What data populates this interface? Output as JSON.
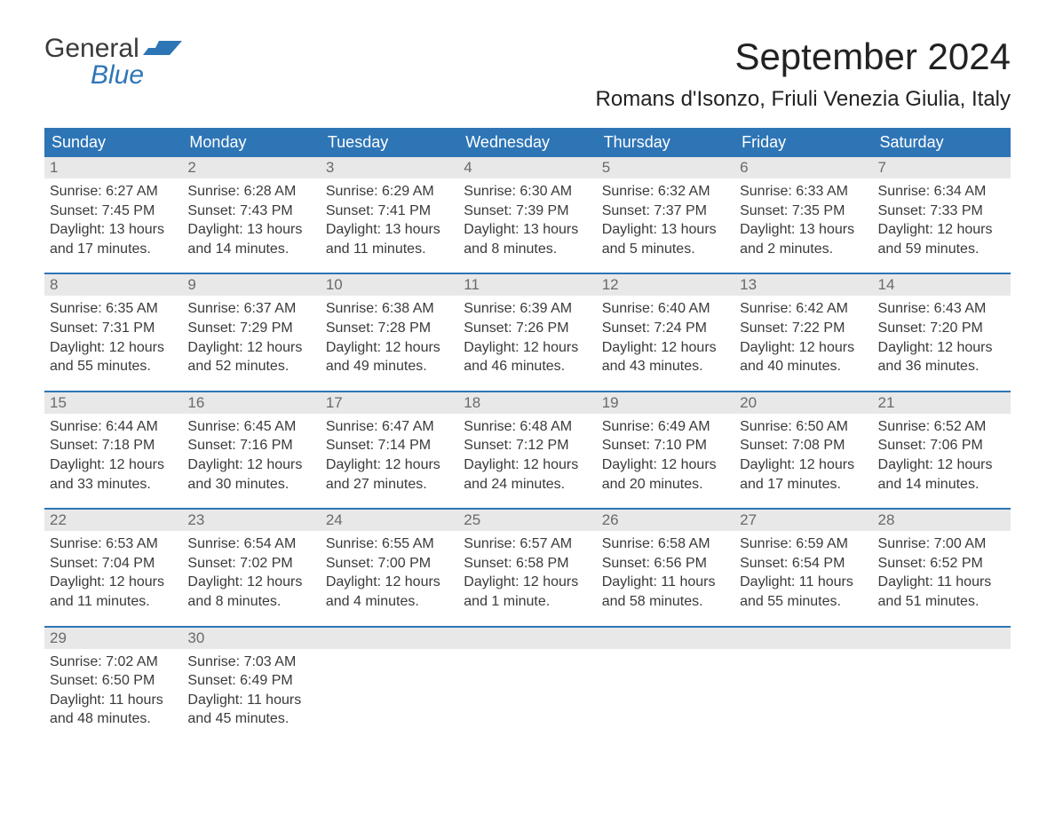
{
  "logo": {
    "text_general": "General",
    "text_blue": "Blue",
    "accent_color": "#2e75b6"
  },
  "title": "September 2024",
  "location": "Romans d'Isonzo, Friuli Venezia Giulia, Italy",
  "colors": {
    "header_bg": "#2e75b6",
    "header_text": "#ffffff",
    "daynum_bg": "#e8e8e8",
    "daynum_text": "#6a6a6a",
    "body_text": "#3a3a3a",
    "week_border": "#2e75b6"
  },
  "day_headers": [
    "Sunday",
    "Monday",
    "Tuesday",
    "Wednesday",
    "Thursday",
    "Friday",
    "Saturday"
  ],
  "weeks": [
    [
      {
        "n": "1",
        "sunrise": "Sunrise: 6:27 AM",
        "sunset": "Sunset: 7:45 PM",
        "d1": "Daylight: 13 hours",
        "d2": "and 17 minutes."
      },
      {
        "n": "2",
        "sunrise": "Sunrise: 6:28 AM",
        "sunset": "Sunset: 7:43 PM",
        "d1": "Daylight: 13 hours",
        "d2": "and 14 minutes."
      },
      {
        "n": "3",
        "sunrise": "Sunrise: 6:29 AM",
        "sunset": "Sunset: 7:41 PM",
        "d1": "Daylight: 13 hours",
        "d2": "and 11 minutes."
      },
      {
        "n": "4",
        "sunrise": "Sunrise: 6:30 AM",
        "sunset": "Sunset: 7:39 PM",
        "d1": "Daylight: 13 hours",
        "d2": "and 8 minutes."
      },
      {
        "n": "5",
        "sunrise": "Sunrise: 6:32 AM",
        "sunset": "Sunset: 7:37 PM",
        "d1": "Daylight: 13 hours",
        "d2": "and 5 minutes."
      },
      {
        "n": "6",
        "sunrise": "Sunrise: 6:33 AM",
        "sunset": "Sunset: 7:35 PM",
        "d1": "Daylight: 13 hours",
        "d2": "and 2 minutes."
      },
      {
        "n": "7",
        "sunrise": "Sunrise: 6:34 AM",
        "sunset": "Sunset: 7:33 PM",
        "d1": "Daylight: 12 hours",
        "d2": "and 59 minutes."
      }
    ],
    [
      {
        "n": "8",
        "sunrise": "Sunrise: 6:35 AM",
        "sunset": "Sunset: 7:31 PM",
        "d1": "Daylight: 12 hours",
        "d2": "and 55 minutes."
      },
      {
        "n": "9",
        "sunrise": "Sunrise: 6:37 AM",
        "sunset": "Sunset: 7:29 PM",
        "d1": "Daylight: 12 hours",
        "d2": "and 52 minutes."
      },
      {
        "n": "10",
        "sunrise": "Sunrise: 6:38 AM",
        "sunset": "Sunset: 7:28 PM",
        "d1": "Daylight: 12 hours",
        "d2": "and 49 minutes."
      },
      {
        "n": "11",
        "sunrise": "Sunrise: 6:39 AM",
        "sunset": "Sunset: 7:26 PM",
        "d1": "Daylight: 12 hours",
        "d2": "and 46 minutes."
      },
      {
        "n": "12",
        "sunrise": "Sunrise: 6:40 AM",
        "sunset": "Sunset: 7:24 PM",
        "d1": "Daylight: 12 hours",
        "d2": "and 43 minutes."
      },
      {
        "n": "13",
        "sunrise": "Sunrise: 6:42 AM",
        "sunset": "Sunset: 7:22 PM",
        "d1": "Daylight: 12 hours",
        "d2": "and 40 minutes."
      },
      {
        "n": "14",
        "sunrise": "Sunrise: 6:43 AM",
        "sunset": "Sunset: 7:20 PM",
        "d1": "Daylight: 12 hours",
        "d2": "and 36 minutes."
      }
    ],
    [
      {
        "n": "15",
        "sunrise": "Sunrise: 6:44 AM",
        "sunset": "Sunset: 7:18 PM",
        "d1": "Daylight: 12 hours",
        "d2": "and 33 minutes."
      },
      {
        "n": "16",
        "sunrise": "Sunrise: 6:45 AM",
        "sunset": "Sunset: 7:16 PM",
        "d1": "Daylight: 12 hours",
        "d2": "and 30 minutes."
      },
      {
        "n": "17",
        "sunrise": "Sunrise: 6:47 AM",
        "sunset": "Sunset: 7:14 PM",
        "d1": "Daylight: 12 hours",
        "d2": "and 27 minutes."
      },
      {
        "n": "18",
        "sunrise": "Sunrise: 6:48 AM",
        "sunset": "Sunset: 7:12 PM",
        "d1": "Daylight: 12 hours",
        "d2": "and 24 minutes."
      },
      {
        "n": "19",
        "sunrise": "Sunrise: 6:49 AM",
        "sunset": "Sunset: 7:10 PM",
        "d1": "Daylight: 12 hours",
        "d2": "and 20 minutes."
      },
      {
        "n": "20",
        "sunrise": "Sunrise: 6:50 AM",
        "sunset": "Sunset: 7:08 PM",
        "d1": "Daylight: 12 hours",
        "d2": "and 17 minutes."
      },
      {
        "n": "21",
        "sunrise": "Sunrise: 6:52 AM",
        "sunset": "Sunset: 7:06 PM",
        "d1": "Daylight: 12 hours",
        "d2": "and 14 minutes."
      }
    ],
    [
      {
        "n": "22",
        "sunrise": "Sunrise: 6:53 AM",
        "sunset": "Sunset: 7:04 PM",
        "d1": "Daylight: 12 hours",
        "d2": "and 11 minutes."
      },
      {
        "n": "23",
        "sunrise": "Sunrise: 6:54 AM",
        "sunset": "Sunset: 7:02 PM",
        "d1": "Daylight: 12 hours",
        "d2": "and 8 minutes."
      },
      {
        "n": "24",
        "sunrise": "Sunrise: 6:55 AM",
        "sunset": "Sunset: 7:00 PM",
        "d1": "Daylight: 12 hours",
        "d2": "and 4 minutes."
      },
      {
        "n": "25",
        "sunrise": "Sunrise: 6:57 AM",
        "sunset": "Sunset: 6:58 PM",
        "d1": "Daylight: 12 hours",
        "d2": "and 1 minute."
      },
      {
        "n": "26",
        "sunrise": "Sunrise: 6:58 AM",
        "sunset": "Sunset: 6:56 PM",
        "d1": "Daylight: 11 hours",
        "d2": "and 58 minutes."
      },
      {
        "n": "27",
        "sunrise": "Sunrise: 6:59 AM",
        "sunset": "Sunset: 6:54 PM",
        "d1": "Daylight: 11 hours",
        "d2": "and 55 minutes."
      },
      {
        "n": "28",
        "sunrise": "Sunrise: 7:00 AM",
        "sunset": "Sunset: 6:52 PM",
        "d1": "Daylight: 11 hours",
        "d2": "and 51 minutes."
      }
    ],
    [
      {
        "n": "29",
        "sunrise": "Sunrise: 7:02 AM",
        "sunset": "Sunset: 6:50 PM",
        "d1": "Daylight: 11 hours",
        "d2": "and 48 minutes."
      },
      {
        "n": "30",
        "sunrise": "Sunrise: 7:03 AM",
        "sunset": "Sunset: 6:49 PM",
        "d1": "Daylight: 11 hours",
        "d2": "and 45 minutes."
      },
      {
        "empty": true
      },
      {
        "empty": true
      },
      {
        "empty": true
      },
      {
        "empty": true
      },
      {
        "empty": true
      }
    ]
  ]
}
